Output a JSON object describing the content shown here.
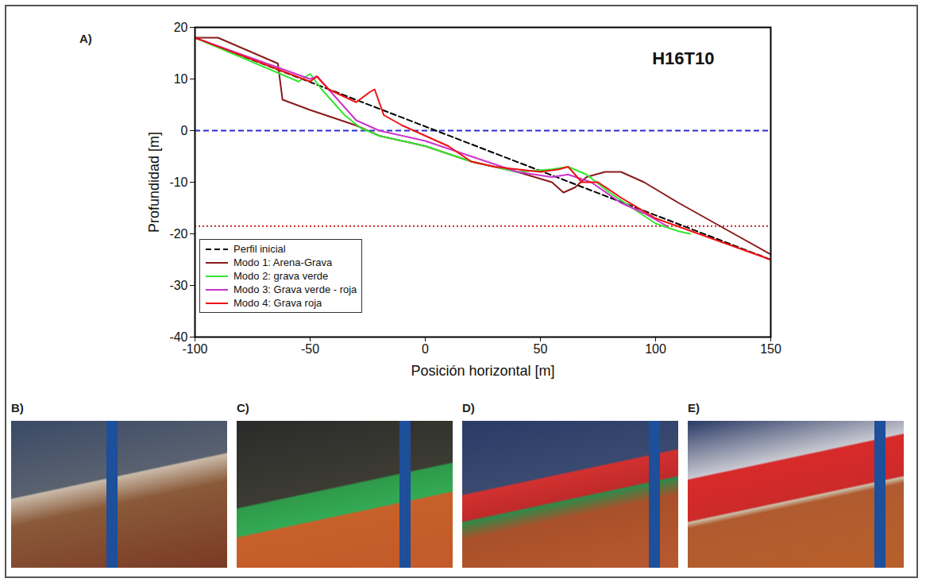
{
  "chart_data": {
    "type": "line",
    "panel_label": "A)",
    "x_label": "Posición horizontal [m]",
    "y_label": "Profundidad [m]",
    "xlim": [
      -100,
      150
    ],
    "xticks": [
      -100,
      -50,
      0,
      50,
      100,
      150
    ],
    "ylim": [
      -40,
      20
    ],
    "yticks": [
      -40,
      -30,
      -20,
      -10,
      0,
      10,
      20
    ],
    "grid": false,
    "legend": "lower left",
    "annotations": [
      {
        "text": "H16T10",
        "x": 112,
        "y": 14
      }
    ],
    "hlines": [
      {
        "value": 0,
        "color": "#2b2bd6",
        "line_style": "dashed"
      },
      {
        "value": -18.5,
        "color": "#c42020",
        "line_style": "dotted"
      }
    ],
    "series": [
      {
        "name": "Perfil inicial",
        "color": "#000000",
        "line_style": "dashed",
        "x": [
          -100,
          150
        ],
        "values": [
          18,
          -25
        ]
      },
      {
        "name": "Modo 1: Arena-Grava",
        "color": "#8b1a1a",
        "line_style": "solid",
        "x": [
          -100,
          -90,
          -64,
          -62,
          -50,
          -30,
          -20,
          0,
          20,
          40,
          55,
          60,
          65,
          70,
          78,
          85,
          95,
          110,
          130,
          150
        ],
        "values": [
          18,
          18,
          13,
          6,
          4,
          1,
          -1,
          -3,
          -6,
          -8,
          -10,
          -12,
          -11,
          -9,
          -8,
          -8,
          -10,
          -14,
          -19,
          -24
        ]
      },
      {
        "name": "Modo 2: grava verde",
        "color": "#33e633",
        "line_style": "solid",
        "x": [
          -100,
          -55,
          -50,
          -45,
          -35,
          -28,
          -20,
          0,
          20,
          40,
          55,
          62,
          70,
          80,
          90,
          100,
          110,
          115
        ],
        "values": [
          18,
          9.5,
          11,
          8,
          3,
          0.5,
          -1,
          -3,
          -6,
          -8,
          -7.5,
          -7,
          -8.5,
          -12,
          -15,
          -18,
          -19.5,
          -20
        ]
      },
      {
        "name": "Modo 3: Grava verde - roja",
        "color": "#cc33cc",
        "line_style": "solid",
        "x": [
          -100,
          -50,
          -47,
          -40,
          -30,
          -20,
          0,
          20,
          40,
          55,
          62,
          72,
          85,
          95,
          105
        ],
        "values": [
          18,
          10,
          10.5,
          7,
          2,
          0,
          -2,
          -5,
          -8,
          -9,
          -8.5,
          -10,
          -14,
          -16,
          -18.5
        ]
      },
      {
        "name": "Modo 4: Grava roja",
        "color": "#ee1111",
        "line_style": "solid",
        "x": [
          -100,
          -50,
          -47,
          -42,
          -30,
          -24,
          -22,
          -18,
          -10,
          0,
          10,
          20,
          30,
          40,
          50,
          58,
          62,
          68,
          75,
          85,
          100,
          125,
          150
        ],
        "values": [
          18,
          9.5,
          10.5,
          8,
          5.5,
          7.5,
          8,
          3,
          1,
          -1,
          -3,
          -6,
          -7,
          -7.5,
          -8,
          -7.5,
          -7,
          -10,
          -10,
          -13,
          -17,
          -21,
          -25
        ]
      }
    ]
  },
  "photos": [
    {
      "label": "B)"
    },
    {
      "label": "C)"
    },
    {
      "label": "D)"
    },
    {
      "label": "E)"
    }
  ]
}
